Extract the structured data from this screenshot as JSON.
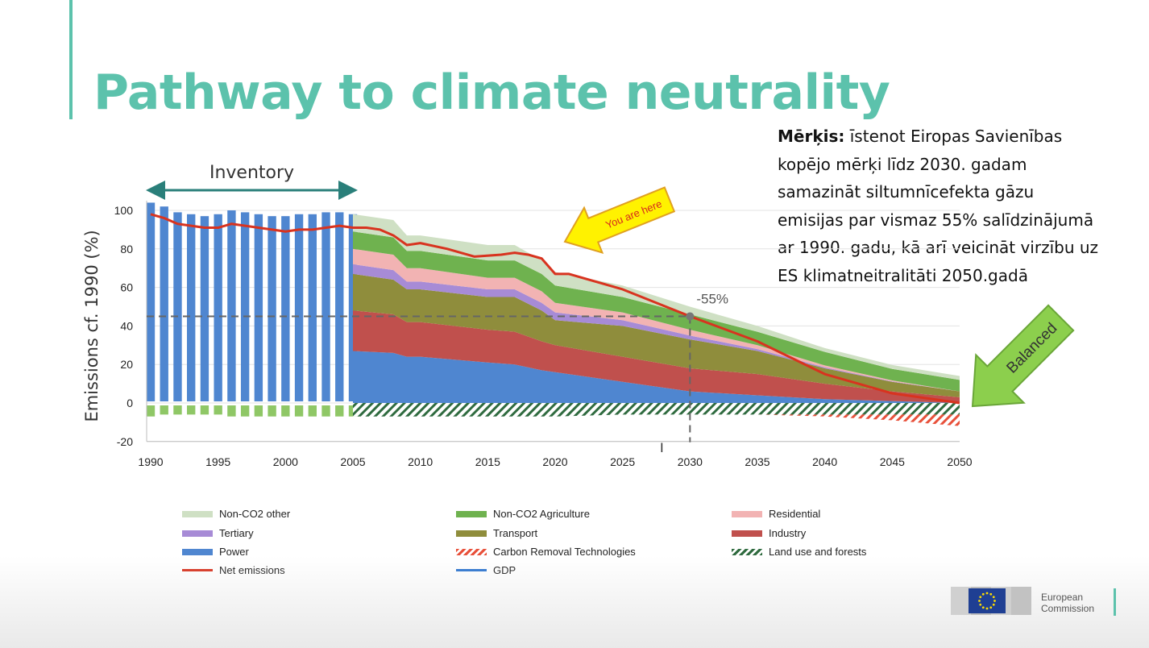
{
  "slide": {
    "title": "Pathway to climate neutrality",
    "objective_label": "Mērķis:",
    "objective_text": " īstenot Eiropas Savienības kopējo mērķi līdz 2030. gadam samazināt siltumnīcefekta gāzu emisijas par vismaz 55% salīdzinājumā ar 1990. gadu, kā arī veicināt virzību uz ES klimatneitralitāti 2050.gadā",
    "logo_text_line1": "European",
    "logo_text_line2": "Commission"
  },
  "chart_data": {
    "type": "area",
    "ylabel": "Emissions cf. 1990 (%)",
    "xlabel": "",
    "ylim": [
      -20,
      105
    ],
    "xlim": [
      1990,
      2050
    ],
    "x_ticks": [
      1990,
      1995,
      2000,
      2005,
      2010,
      2015,
      2020,
      2025,
      2030,
      2035,
      2040,
      2045,
      2050
    ],
    "y_ticks": [
      -20,
      0,
      20,
      40,
      60,
      80,
      100
    ],
    "grid": "horizontal",
    "legend_position": "bottom",
    "annotations": {
      "inventory": "Inventory",
      "inventory_range": [
        1990,
        2005
      ],
      "you_are_here": "You are here",
      "you_are_here_year": 2020,
      "target": "-55%",
      "target_point": [
        2030,
        45
      ],
      "balanced": "Balanced",
      "balanced_year": 2050
    },
    "inventory_bars": {
      "x": [
        1990,
        1991,
        1992,
        1993,
        1994,
        1995,
        1996,
        1997,
        1998,
        1999,
        2000,
        2001,
        2002,
        2003,
        2004,
        2005
      ],
      "values": [
        104,
        102,
        99,
        98,
        97,
        98,
        100,
        99,
        98,
        97,
        97,
        98,
        98,
        99,
        99,
        98
      ],
      "negative": [
        -7,
        -6,
        -6,
        -6,
        -6,
        -6,
        -7,
        -7,
        -7,
        -7,
        -7,
        -7,
        -7,
        -7,
        -7,
        -7
      ],
      "color": "#4f86d0",
      "negative_color": "#8fc766"
    },
    "x": [
      2005,
      2008,
      2009,
      2010,
      2015,
      2017,
      2019,
      2020,
      2025,
      2030,
      2035,
      2040,
      2045,
      2050
    ],
    "series": [
      {
        "name": "Power",
        "color": "#4f86d0",
        "values": [
          27,
          26,
          24,
          24,
          21,
          20,
          17,
          16,
          11,
          6,
          4,
          2,
          1,
          0
        ]
      },
      {
        "name": "Industry",
        "color": "#c0504d",
        "values": [
          21,
          20,
          18,
          18,
          17,
          17,
          15,
          14,
          13,
          12,
          11,
          8,
          5,
          3
        ]
      },
      {
        "name": "Transport",
        "color": "#8f8d3c",
        "values": [
          19,
          18,
          17,
          17,
          17,
          18,
          16,
          13,
          16,
          15,
          12,
          8,
          5,
          3
        ]
      },
      {
        "name": "Tertiary",
        "color": "#a78bd6",
        "values": [
          5,
          5,
          4,
          4,
          4,
          4,
          4,
          4,
          3,
          2,
          1,
          0.5,
          0.2,
          0
        ]
      },
      {
        "name": "Residential",
        "color": "#f2b3b3",
        "values": [
          8,
          8,
          7,
          7,
          6,
          6,
          6,
          5,
          4,
          3,
          2,
          1,
          0.5,
          0
        ]
      },
      {
        "name": "Non-CO2 Agriculture",
        "color": "#6fb24f",
        "values": [
          9,
          9,
          9,
          9,
          9,
          9,
          9,
          9,
          8,
          8,
          7,
          7,
          6,
          6
        ]
      },
      {
        "name": "Non-CO2 other",
        "color": "#cfe0c4",
        "values": [
          9,
          9,
          8,
          8,
          8,
          8,
          7,
          7,
          6,
          4,
          3,
          2,
          2,
          2
        ]
      }
    ],
    "negative_series": [
      {
        "name": "Land use and forests",
        "color": "#2f6b3f",
        "values": [
          -7,
          -7,
          -7,
          -7,
          -7,
          -7,
          -7,
          -7,
          -6,
          -6,
          -6,
          -6,
          -6,
          -6
        ]
      },
      {
        "name": "Carbon Removal Technologies",
        "color": "#e8503a",
        "values": [
          0,
          0,
          0,
          0,
          0,
          0,
          0,
          0,
          0,
          0,
          0,
          -1,
          -3,
          -6
        ]
      }
    ],
    "net_emissions": {
      "name": "Net emissions",
      "color": "#d8331f",
      "x": [
        1990,
        1991,
        1992,
        1993,
        1994,
        1995,
        1996,
        1997,
        1998,
        1999,
        2000,
        2001,
        2002,
        2003,
        2004,
        2005,
        2006,
        2007,
        2008,
        2009,
        2010,
        2012,
        2014,
        2016,
        2017,
        2018,
        2019,
        2020,
        2021,
        2025,
        2030,
        2035,
        2040,
        2045,
        2050
      ],
      "values": [
        98,
        96,
        93,
        92,
        91,
        91,
        93,
        92,
        91,
        90,
        89,
        90,
        90,
        91,
        92,
        91,
        91,
        90,
        87,
        82,
        83,
        80,
        76,
        77,
        78,
        77,
        75,
        67,
        67,
        59,
        45,
        32,
        15,
        5,
        0
      ]
    },
    "legend": [
      {
        "name": "Non-CO2 other",
        "color": "#cfe0c4",
        "style": "fill"
      },
      {
        "name": "Non-CO2 Agriculture",
        "color": "#6fb24f",
        "style": "fill"
      },
      {
        "name": "Residential",
        "color": "#f2b3b3",
        "style": "fill"
      },
      {
        "name": "Tertiary",
        "color": "#a78bd6",
        "style": "fill"
      },
      {
        "name": "Transport",
        "color": "#8f8d3c",
        "style": "fill"
      },
      {
        "name": "Industry",
        "color": "#c0504d",
        "style": "fill"
      },
      {
        "name": "Power",
        "color": "#4f86d0",
        "style": "fill"
      },
      {
        "name": "Carbon Removal Technologies",
        "color": "#e8503a",
        "style": "hatch"
      },
      {
        "name": "Land use and forests",
        "color": "#2f6b3f",
        "style": "hatch"
      },
      {
        "name": "Net emissions",
        "color": "#d8331f",
        "style": "line"
      },
      {
        "name": "GDP",
        "color": "#2e75d0",
        "style": "line"
      }
    ]
  }
}
